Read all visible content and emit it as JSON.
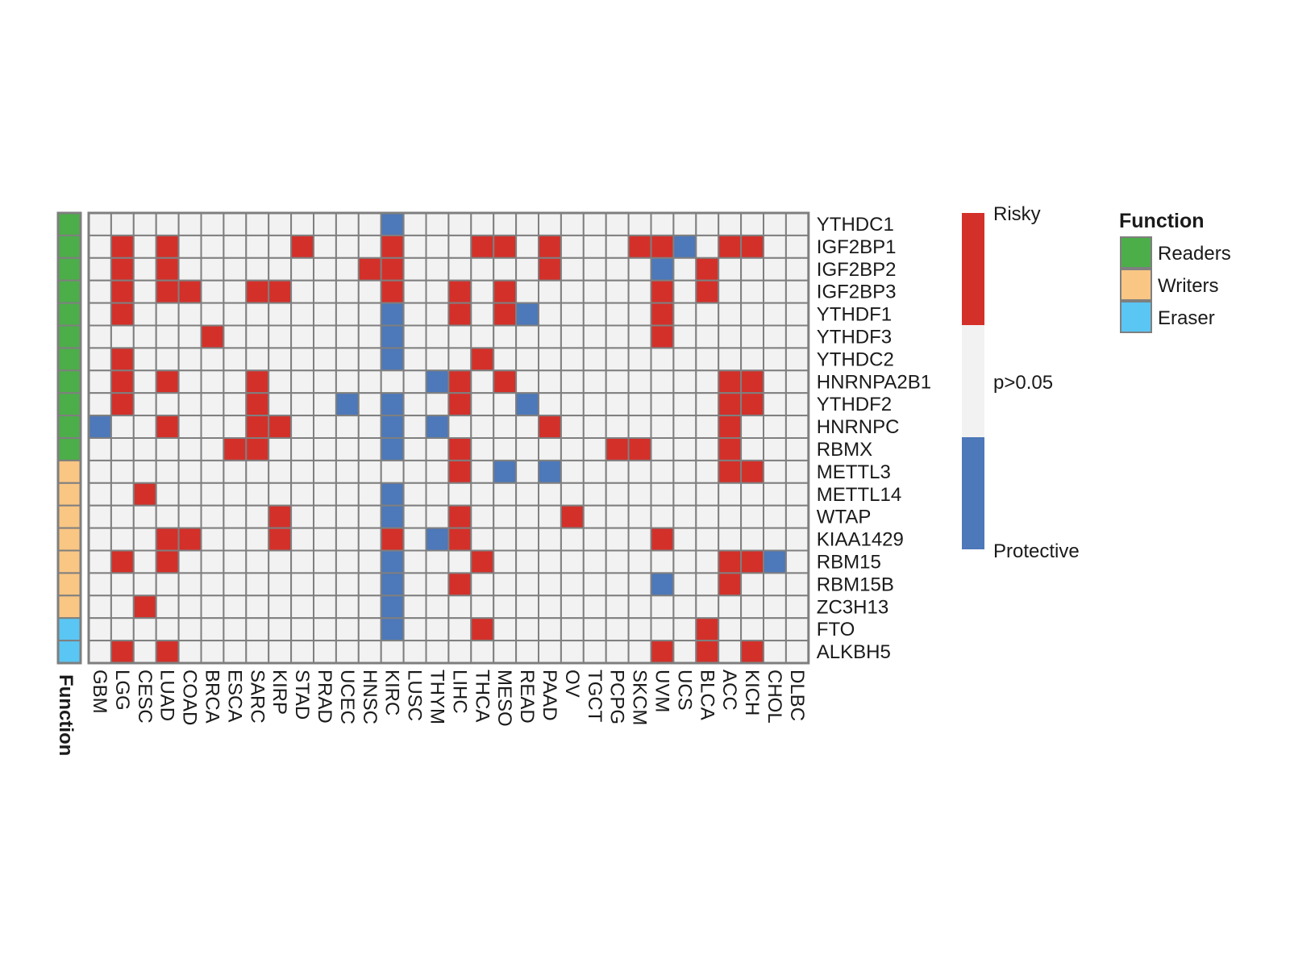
{
  "chart_data": {
    "type": "heatmap",
    "genes": [
      "YTHDC1",
      "IGF2BP1",
      "IGF2BP2",
      "IGF2BP3",
      "YTHDF1",
      "YTHDF3",
      "YTHDC2",
      "HNRNPA2B1",
      "YTHDF2",
      "HNRNPC",
      "RBMX",
      "METTL3",
      "METTL14",
      "WTAP",
      "KIAA1429",
      "RBM15",
      "RBM15B",
      "ZC3H13",
      "FTO",
      "ALKBH5"
    ],
    "cancers": [
      "GBM",
      "LGG",
      "CESC",
      "LUAD",
      "COAD",
      "BRCA",
      "ESCA",
      "SARC",
      "KIRP",
      "STAD",
      "PRAD",
      "UCEC",
      "HNSC",
      "KIRC",
      "LUSC",
      "THYM",
      "LIHC",
      "THCA",
      "MESO",
      "READ",
      "PAAD",
      "OV",
      "TGCT",
      "PCPG",
      "SKCM",
      "UVM",
      "UCS",
      "BLCA",
      "ACC",
      "KICH",
      "CHOL",
      "DLBC"
    ],
    "gene_function": [
      "Readers",
      "Readers",
      "Readers",
      "Readers",
      "Readers",
      "Readers",
      "Readers",
      "Readers",
      "Readers",
      "Readers",
      "Readers",
      "Writers",
      "Writers",
      "Writers",
      "Writers",
      "Writers",
      "Writers",
      "Writers",
      "Eraser",
      "Eraser"
    ],
    "value_legend": {
      "1": "Risky",
      "0": "p>0.05",
      "-1": "Protective"
    },
    "values": [
      [
        0,
        0,
        0,
        0,
        0,
        0,
        0,
        0,
        0,
        0,
        0,
        0,
        0,
        -1,
        0,
        0,
        0,
        0,
        0,
        0,
        0,
        0,
        0,
        0,
        0,
        0,
        0,
        0,
        0,
        0,
        0,
        0
      ],
      [
        0,
        1,
        0,
        1,
        0,
        0,
        0,
        0,
        0,
        1,
        0,
        0,
        0,
        1,
        0,
        0,
        0,
        1,
        1,
        0,
        1,
        0,
        0,
        0,
        1,
        1,
        -1,
        0,
        1,
        1,
        0,
        0
      ],
      [
        0,
        1,
        0,
        1,
        0,
        0,
        0,
        0,
        0,
        0,
        0,
        0,
        1,
        1,
        0,
        0,
        0,
        0,
        0,
        0,
        1,
        0,
        0,
        0,
        0,
        -1,
        0,
        1,
        0,
        0,
        0,
        0
      ],
      [
        0,
        1,
        0,
        1,
        1,
        0,
        0,
        1,
        1,
        0,
        0,
        0,
        0,
        1,
        0,
        0,
        1,
        0,
        1,
        0,
        0,
        0,
        0,
        0,
        0,
        1,
        0,
        1,
        0,
        0,
        0,
        0
      ],
      [
        0,
        1,
        0,
        0,
        0,
        0,
        0,
        0,
        0,
        0,
        0,
        0,
        0,
        -1,
        0,
        0,
        1,
        0,
        1,
        -1,
        0,
        0,
        0,
        0,
        0,
        1,
        0,
        0,
        0,
        0,
        0,
        0
      ],
      [
        0,
        0,
        0,
        0,
        0,
        1,
        0,
        0,
        0,
        0,
        0,
        0,
        0,
        -1,
        0,
        0,
        0,
        0,
        0,
        0,
        0,
        0,
        0,
        0,
        0,
        1,
        0,
        0,
        0,
        0,
        0,
        0
      ],
      [
        0,
        1,
        0,
        0,
        0,
        0,
        0,
        0,
        0,
        0,
        0,
        0,
        0,
        -1,
        0,
        0,
        0,
        1,
        0,
        0,
        0,
        0,
        0,
        0,
        0,
        0,
        0,
        0,
        0,
        0,
        0,
        0
      ],
      [
        0,
        1,
        0,
        1,
        0,
        0,
        0,
        1,
        0,
        0,
        0,
        0,
        0,
        0,
        0,
        -1,
        1,
        0,
        1,
        0,
        0,
        0,
        0,
        0,
        0,
        0,
        0,
        0,
        1,
        1,
        0,
        0
      ],
      [
        0,
        1,
        0,
        0,
        0,
        0,
        0,
        1,
        0,
        0,
        0,
        -1,
        0,
        -1,
        0,
        0,
        1,
        0,
        0,
        -1,
        0,
        0,
        0,
        0,
        0,
        0,
        0,
        0,
        1,
        1,
        0,
        0
      ],
      [
        -1,
        0,
        0,
        1,
        0,
        0,
        0,
        1,
        1,
        0,
        0,
        0,
        0,
        -1,
        0,
        -1,
        0,
        0,
        0,
        0,
        1,
        0,
        0,
        0,
        0,
        0,
        0,
        0,
        1,
        0,
        0,
        0
      ],
      [
        0,
        0,
        0,
        0,
        0,
        0,
        1,
        1,
        0,
        0,
        0,
        0,
        0,
        -1,
        0,
        0,
        1,
        0,
        0,
        0,
        0,
        0,
        0,
        1,
        1,
        0,
        0,
        0,
        1,
        0,
        0,
        0
      ],
      [
        0,
        0,
        0,
        0,
        0,
        0,
        0,
        0,
        0,
        0,
        0,
        0,
        0,
        0,
        0,
        0,
        1,
        0,
        -1,
        0,
        -1,
        0,
        0,
        0,
        0,
        0,
        0,
        0,
        1,
        1,
        0,
        0
      ],
      [
        0,
        0,
        1,
        0,
        0,
        0,
        0,
        0,
        0,
        0,
        0,
        0,
        0,
        -1,
        0,
        0,
        0,
        0,
        0,
        0,
        0,
        0,
        0,
        0,
        0,
        0,
        0,
        0,
        0,
        0,
        0,
        0
      ],
      [
        0,
        0,
        0,
        0,
        0,
        0,
        0,
        0,
        1,
        0,
        0,
        0,
        0,
        -1,
        0,
        0,
        1,
        0,
        0,
        0,
        0,
        1,
        0,
        0,
        0,
        0,
        0,
        0,
        0,
        0,
        0,
        0
      ],
      [
        0,
        0,
        0,
        1,
        1,
        0,
        0,
        0,
        1,
        0,
        0,
        0,
        0,
        1,
        0,
        -1,
        1,
        0,
        0,
        0,
        0,
        0,
        0,
        0,
        0,
        1,
        0,
        0,
        0,
        0,
        0,
        0
      ],
      [
        0,
        1,
        0,
        1,
        0,
        0,
        0,
        0,
        0,
        0,
        0,
        0,
        0,
        -1,
        0,
        0,
        0,
        1,
        0,
        0,
        0,
        0,
        0,
        0,
        0,
        0,
        0,
        0,
        1,
        1,
        -1,
        0
      ],
      [
        0,
        0,
        0,
        0,
        0,
        0,
        0,
        0,
        0,
        0,
        0,
        0,
        0,
        -1,
        0,
        0,
        1,
        0,
        0,
        0,
        0,
        0,
        0,
        0,
        0,
        -1,
        0,
        0,
        1,
        0,
        0,
        0
      ],
      [
        0,
        0,
        1,
        0,
        0,
        0,
        0,
        0,
        0,
        0,
        0,
        0,
        0,
        -1,
        0,
        0,
        0,
        0,
        0,
        0,
        0,
        0,
        0,
        0,
        0,
        0,
        0,
        0,
        0,
        0,
        0,
        0
      ],
      [
        0,
        0,
        0,
        0,
        0,
        0,
        0,
        0,
        0,
        0,
        0,
        0,
        0,
        -1,
        0,
        0,
        0,
        1,
        0,
        0,
        0,
        0,
        0,
        0,
        0,
        0,
        0,
        1,
        0,
        0,
        0,
        0
      ],
      [
        0,
        1,
        0,
        1,
        0,
        0,
        0,
        0,
        0,
        0,
        0,
        0,
        0,
        0,
        0,
        0,
        0,
        0,
        0,
        0,
        0,
        0,
        0,
        0,
        0,
        1,
        0,
        1,
        0,
        1,
        0,
        0
      ]
    ],
    "colors": {
      "risky": "#d3302a",
      "neutral": "#f2f2f2",
      "protective": "#4d78b9",
      "grid": "#7f7f7f",
      "readers": "#4cae49",
      "writers": "#f9c683",
      "eraser": "#59c6f4"
    },
    "annotation_title": "Function",
    "legend": {
      "value_labels": {
        "top": "Risky",
        "middle": "p>0.05",
        "bottom": "Protective"
      },
      "function_title": "Function",
      "function_items": [
        {
          "label": "Readers",
          "color": "#4cae49"
        },
        {
          "label": "Writers",
          "color": "#f9c683"
        },
        {
          "label": "Eraser",
          "color": "#59c6f4"
        }
      ]
    }
  }
}
